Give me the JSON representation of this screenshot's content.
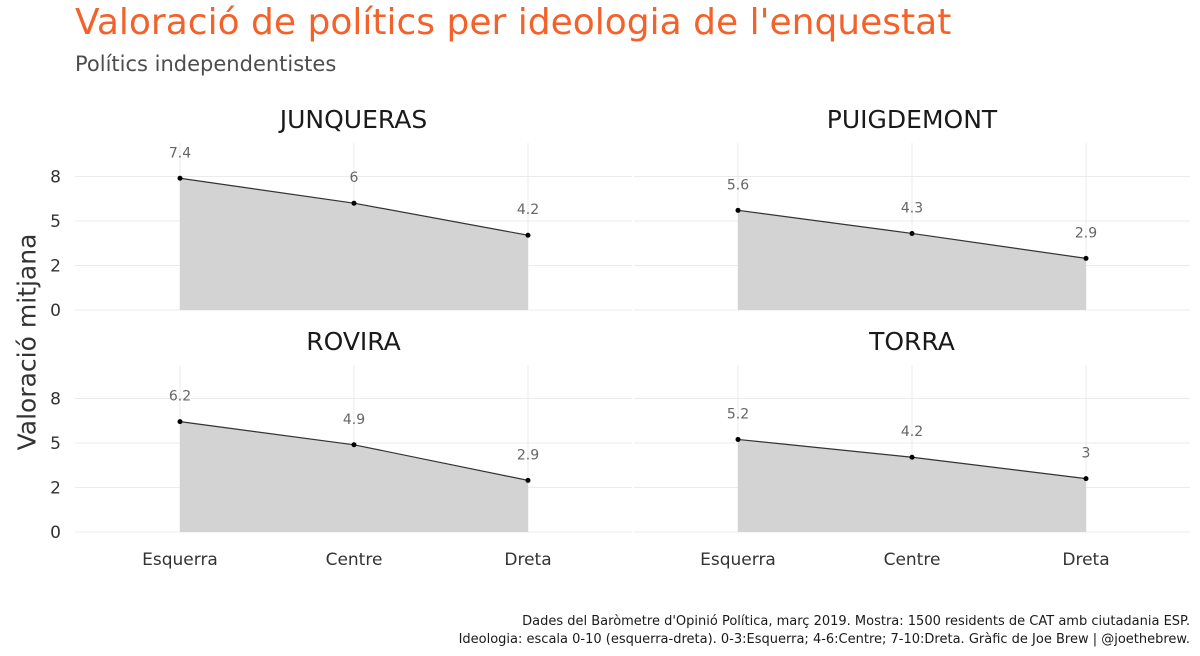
{
  "title": "Valoració de polítics per ideologia de l'enquestat",
  "subtitle": "Polítics independentistes",
  "ylabel": "Valoració mitjana",
  "caption": {
    "line1": "Dades del Baròmetre d'Opinió Política, març 2019. Mostra: 1500 residents de CAT amb ciutadania ESP.",
    "line2": "Ideologia: escala 0-10 (esquerra-dreta). 0-3:Esquerra; 4-6:Centre; 7-10:Dreta. Gràfic de Joe Brew | @joethebrew."
  },
  "colors": {
    "title": "#f4622b",
    "area": "#d3d3d3",
    "line": "#333333",
    "grid": "#ebebeb",
    "label": "#666666"
  },
  "chart_data": {
    "type": "area",
    "title": "Valoració de polítics per ideologia de l'enquestat",
    "subtitle": "Polítics independentistes",
    "xlabel": "",
    "ylabel": "Valoració mitjana",
    "categories": [
      "Esquerra",
      "Centre",
      "Dreta"
    ],
    "ylim": [
      0,
      10
    ],
    "yticks": [
      0,
      2.5,
      5,
      7.5
    ],
    "ytick_labels": [
      "0",
      "2",
      "5",
      "8"
    ],
    "grid": true,
    "panels": [
      {
        "name": "JUNQUERAS",
        "values": [
          7.4,
          6,
          4.2
        ],
        "labels": [
          "7.4",
          "6",
          "4.2"
        ]
      },
      {
        "name": "PUIGDEMONT",
        "values": [
          5.6,
          4.3,
          2.9
        ],
        "labels": [
          "5.6",
          "4.3",
          "2.9"
        ]
      },
      {
        "name": "ROVIRA",
        "values": [
          6.2,
          4.9,
          2.9
        ],
        "labels": [
          "6.2",
          "4.9",
          "2.9"
        ]
      },
      {
        "name": "TORRA",
        "values": [
          5.2,
          4.2,
          3
        ],
        "labels": [
          "5.2",
          "4.2",
          "3"
        ]
      }
    ]
  }
}
